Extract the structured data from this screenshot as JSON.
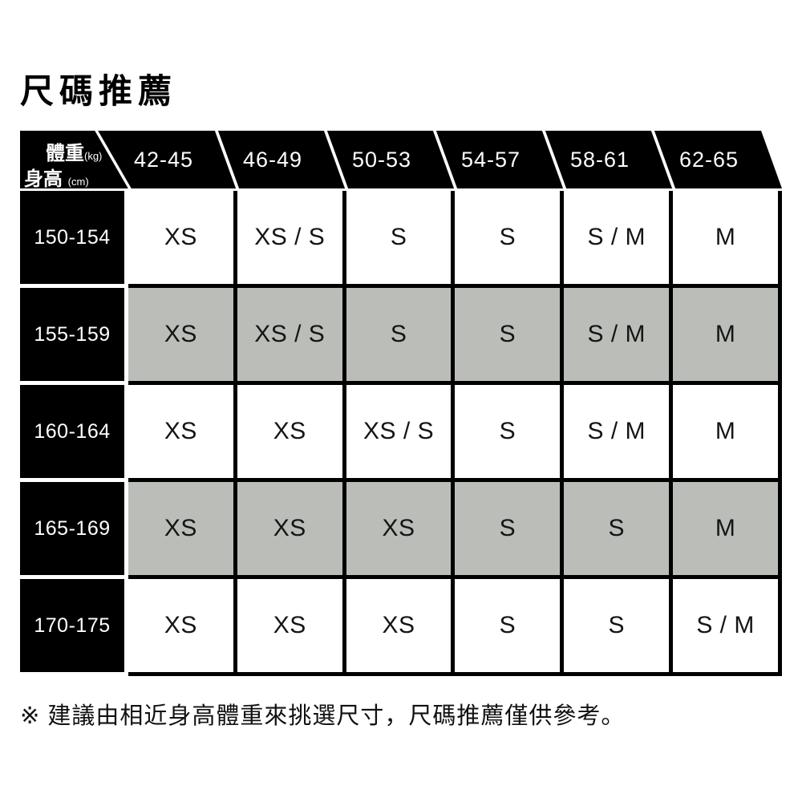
{
  "title": "尺碼推薦",
  "corner": {
    "weight_label": "體重",
    "weight_unit": "(kg)",
    "height_label": "身高",
    "height_unit": "(cm)"
  },
  "note": "※ 建議由相近身高體重來挑選尺寸，尺碼推薦僅供參考。",
  "colors": {
    "header_bg": "#000000",
    "header_text": "#ffffff",
    "row_plain": "#ffffff",
    "row_shaded": "#bbbdb9",
    "cell_text": "#151515",
    "border": "#000000"
  },
  "chart_data": {
    "type": "table",
    "title": "尺碼推薦",
    "column_axis_label": "體重 (kg)",
    "row_axis_label": "身高 (cm)",
    "columns": [
      "42-45",
      "46-49",
      "50-53",
      "54-57",
      "58-61",
      "62-65"
    ],
    "rows": [
      "150-154",
      "155-159",
      "160-164",
      "165-169",
      "170-175"
    ],
    "cells": [
      [
        "XS",
        "XS / S",
        "S",
        "S",
        "S / M",
        "M"
      ],
      [
        "XS",
        "XS / S",
        "S",
        "S",
        "S / M",
        "M"
      ],
      [
        "XS",
        "XS",
        "XS / S",
        "S",
        "S / M",
        "M"
      ],
      [
        "XS",
        "XS",
        "XS",
        "S",
        "S",
        "M"
      ],
      [
        "XS",
        "XS",
        "XS",
        "S",
        "S",
        "S / M"
      ]
    ],
    "shaded_rows": [
      1,
      3
    ],
    "layout": {
      "shading": "alternate rows gray",
      "header_style": "black parallelogram band with white diagonal dividers"
    }
  }
}
